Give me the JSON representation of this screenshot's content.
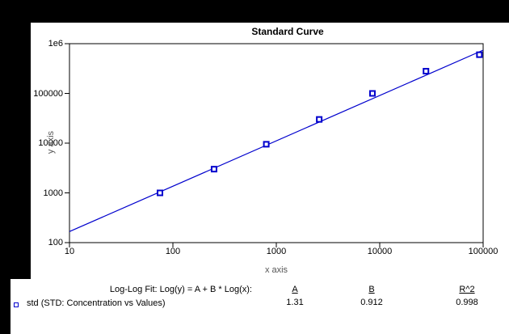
{
  "window": {
    "background_color": "#000000",
    "panel_color": "#ffffff"
  },
  "colors": {
    "accent_blue": "#0000CD",
    "axis_title_gray": "#555555",
    "text": "#000000"
  },
  "chart_data": {
    "type": "scatter",
    "title": "Standard Curve",
    "xlabel": "x axis",
    "ylabel": "y axis",
    "xscale": "log",
    "yscale": "log",
    "xlim": [
      10,
      100000
    ],
    "ylim": [
      100,
      1000000
    ],
    "grid": false,
    "x_tick_labels": [
      "10",
      "100",
      "1000",
      "10000",
      "100000"
    ],
    "y_tick_labels": [
      "100",
      "1000",
      "10000",
      "100000",
      "1e6"
    ],
    "series": [
      {
        "name": "std (STD: Concentration vs Values)",
        "marker": "open-square",
        "color": "#0000CD",
        "points": [
          {
            "x": 75,
            "y": 1000
          },
          {
            "x": 250,
            "y": 3000
          },
          {
            "x": 800,
            "y": 9500
          },
          {
            "x": 2600,
            "y": 30000
          },
          {
            "x": 8500,
            "y": 100000
          },
          {
            "x": 28000,
            "y": 280000
          },
          {
            "x": 92000,
            "y": 600000
          }
        ]
      }
    ],
    "fit": {
      "label": "Log-Log Fit: Log(y) = A + B * Log(x):",
      "columns": [
        "A",
        "B",
        "R^2"
      ],
      "values": [
        "1.31",
        "0.912",
        "0.998"
      ],
      "A": 1.31,
      "B": 0.912,
      "R2": 0.998
    },
    "legend_position": "bottom-left"
  }
}
